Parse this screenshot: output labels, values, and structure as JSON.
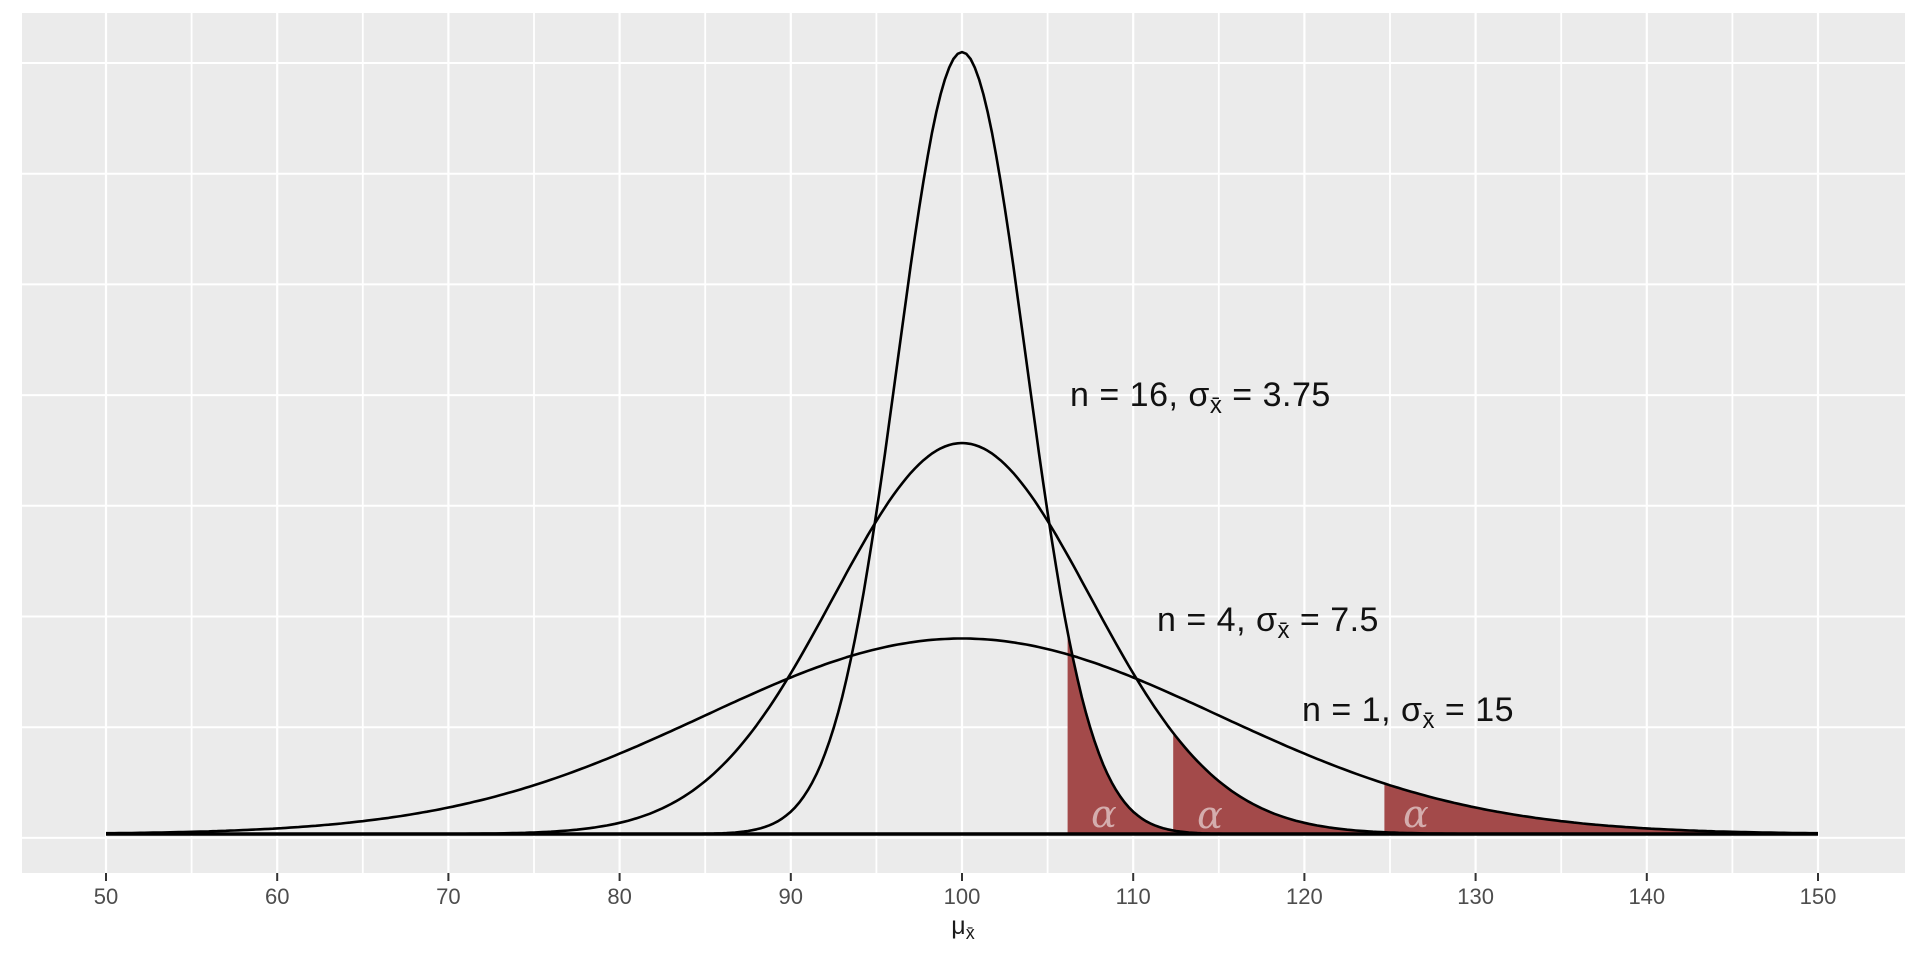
{
  "chart_data": {
    "type": "line",
    "title": "",
    "description": "Sampling distributions of the mean for n = 1, 4, 16 with right-tail alpha rejection regions",
    "xlabel_main": "μ",
    "xlabel_sub": "x̄",
    "x_ticks": [
      50,
      60,
      70,
      80,
      90,
      100,
      110,
      120,
      130,
      140,
      150
    ],
    "x_range": [
      50,
      150
    ],
    "x_minor_step": 5,
    "ylabel": "",
    "grid": "on",
    "legend_position": "none",
    "mean": 100,
    "z_critical": 1.645,
    "alpha_label": "α",
    "curves": [
      {
        "name": "n16",
        "n": 16,
        "sigma": 3.75,
        "peak_density": 0.1064,
        "critical_value": 106.17,
        "annotation_before": "n = 16, σ",
        "annotation_sub": "x̄",
        "annotation_after": " = 3.75"
      },
      {
        "name": "n4",
        "n": 4,
        "sigma": 7.5,
        "peak_density": 0.0532,
        "critical_value": 112.34,
        "annotation_before": "n = 4, σ",
        "annotation_sub": "x̄",
        "annotation_after": " = 7.5"
      },
      {
        "name": "n1",
        "n": 1,
        "sigma": 15,
        "peak_density": 0.0266,
        "critical_value": 124.67,
        "annotation_before": "n = 1, σ",
        "annotation_sub": "x̄",
        "annotation_after": " = 15"
      }
    ],
    "colors": {
      "outer_bg": "#FFFFFF",
      "panel_bg": "#EBEBEB",
      "grid": "#FFFFFF",
      "curve": "#000000",
      "alpha_fill": "#A34A4A",
      "alpha_text": "#D4ADAD",
      "tick_text": "#4D4D4D",
      "tick_mark": "#333333"
    }
  }
}
